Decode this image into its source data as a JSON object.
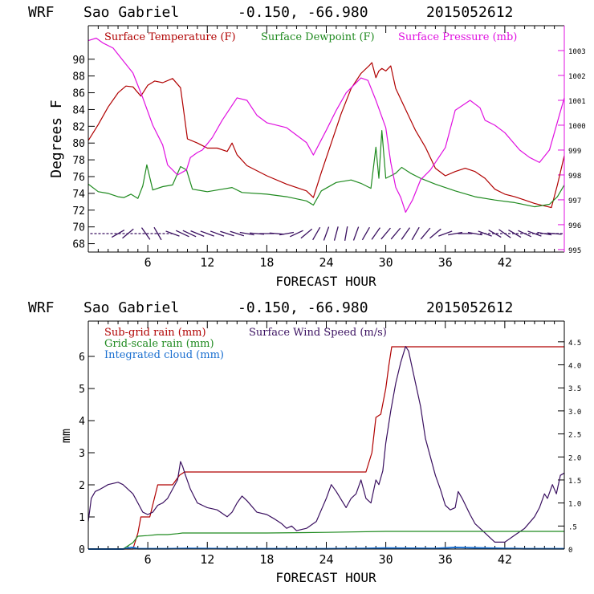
{
  "chart_data": [
    {
      "type": "line",
      "title": "WRF   Sao Gabriel   -0.150, -66.980  2015052612",
      "title_parts": {
        "model": "WRF",
        "station": "Sao Gabriel",
        "coords": "-0.150, -66.980",
        "run": "2015052612"
      },
      "xlabel": "FORECAST HOUR",
      "ylabel": "Degrees F",
      "xlim": [
        0,
        48
      ],
      "x_ticks": [
        6,
        12,
        18,
        24,
        30,
        36,
        42
      ],
      "ylim": [
        67,
        94
      ],
      "y_ticks": [
        68,
        70,
        72,
        74,
        76,
        78,
        80,
        82,
        84,
        86,
        88,
        90
      ],
      "y2lim": [
        994.9,
        1004.0
      ],
      "y2_ticks": [
        995,
        996,
        997,
        998,
        999,
        1000,
        1001,
        1002,
        1003
      ],
      "legend": [
        "Surface Temperature (F)",
        "Surface Dewpoint (F)",
        "Surface Pressure (mb)"
      ],
      "colors": {
        "temperature": "#b00000",
        "dewpoint": "#1f8a1f",
        "pressure": "#e010e0",
        "barbs": "#3a1060",
        "frame_left": "#000000",
        "frame_right": "#e010e0"
      },
      "series": [
        {
          "name": "Surface Temperature (F)",
          "axis": "left",
          "x": [
            0,
            1,
            2,
            3,
            3.8,
            4.5,
            5.3,
            6,
            6.7,
            7.5,
            8.5,
            9.3,
            9.6,
            10,
            11,
            12,
            13,
            14,
            14.5,
            15,
            16,
            18,
            20,
            22,
            22.7,
            23.5,
            24.5,
            25.5,
            26.5,
            27.5,
            28.3,
            28.6,
            29,
            29.3,
            29.6,
            30,
            30.5,
            31,
            32,
            33,
            34,
            35,
            36,
            37,
            38,
            39,
            40,
            41,
            42,
            43,
            44,
            45,
            46,
            46.7,
            47.3,
            48
          ],
          "values": [
            80.3,
            82.2,
            84.3,
            86,
            86.8,
            86.7,
            85.6,
            86.9,
            87.4,
            87.2,
            87.7,
            86.6,
            84,
            80.5,
            80,
            79.4,
            79.4,
            79,
            80,
            78.6,
            77.3,
            76.1,
            75.1,
            74.3,
            73.5,
            76.5,
            80,
            83.5,
            86.5,
            88.3,
            89.2,
            89.6,
            87.8,
            88.6,
            88.9,
            88.6,
            89.2,
            86.5,
            84,
            81.5,
            79.5,
            77,
            76.1,
            76.6,
            77,
            76.6,
            75.8,
            74.5,
            73.9,
            73.6,
            73.2,
            72.8,
            72.5,
            72.3,
            75,
            78.5
          ]
        },
        {
          "name": "Surface Dewpoint (F)",
          "axis": "left",
          "x": [
            0,
            1,
            2,
            3,
            3.6,
            4.3,
            5,
            5.5,
            5.9,
            6.5,
            7.5,
            8.5,
            9.3,
            9.9,
            10.5,
            12,
            13.5,
            14.5,
            15.5,
            18,
            20,
            22,
            22.7,
            23.5,
            25,
            26.5,
            27.5,
            28.5,
            29,
            29.3,
            29.6,
            30,
            30.5,
            31,
            31.6,
            32.5,
            33.5,
            35,
            37,
            39,
            41,
            43,
            45,
            46.5,
            47.3,
            48
          ],
          "values": [
            75.1,
            74.2,
            74,
            73.6,
            73.5,
            73.9,
            73.4,
            74.9,
            77.4,
            74.4,
            74.8,
            75,
            77.2,
            76.8,
            74.5,
            74.2,
            74.5,
            74.7,
            74.1,
            73.9,
            73.6,
            73.1,
            72.6,
            74.3,
            75.3,
            75.6,
            75.2,
            74.6,
            79.5,
            75.8,
            81.5,
            75.8,
            76.1,
            76.4,
            77.1,
            76.4,
            75.8,
            75.1,
            74.3,
            73.6,
            73.2,
            72.9,
            72.4,
            72.7,
            73.6,
            75
          ]
        },
        {
          "name": "Surface Pressure (mb)",
          "axis": "right",
          "x": [
            0,
            0.8,
            1.5,
            2.5,
            3.5,
            4.5,
            5.5,
            6.5,
            7.5,
            8,
            9,
            9.9,
            10.3,
            11,
            11.5,
            12.5,
            13.5,
            15,
            16,
            17,
            18,
            20,
            22,
            22.7,
            24,
            25,
            26,
            27.5,
            28.2,
            29,
            30,
            30.5,
            31,
            31.5,
            32,
            32.7,
            33.5,
            34.5,
            36,
            37,
            38.5,
            39.5,
            40,
            41,
            42,
            43.5,
            44.5,
            45.5,
            46.5,
            47.5,
            48
          ],
          "values": [
            1003.4,
            1003.5,
            1003.3,
            1003.1,
            1002.6,
            1002.1,
            1001.1,
            1000.0,
            999.2,
            998.4,
            998.0,
            998.2,
            998.7,
            998.9,
            999.0,
            999.5,
            1000.2,
            1001.1,
            1001.0,
            1000.4,
            1000.1,
            999.9,
            999.3,
            998.8,
            999.8,
            1000.6,
            1001.3,
            1001.9,
            1001.8,
            1001.0,
            999.9,
            998.5,
            997.5,
            997.1,
            996.5,
            997.0,
            997.8,
            998.2,
            999.1,
            1000.6,
            1001.0,
            1000.7,
            1000.2,
            1000.0,
            999.7,
            999.0,
            998.7,
            998.5,
            999.0,
            1000.4,
            1001.1
          ]
        }
      ],
      "wind_barbs": {
        "description": "Row of wind barbs plotted near 69 F along the bottom of the temperature panel"
      }
    },
    {
      "type": "line",
      "title": "WRF   Sao Gabriel   -0.150, -66.980  2015052612",
      "title_parts": {
        "model": "WRF",
        "station": "Sao Gabriel",
        "coords": "-0.150, -66.980",
        "run": "2015052612"
      },
      "xlabel": "FORECAST HOUR",
      "ylabel": "mm",
      "xlim": [
        0,
        48
      ],
      "x_ticks": [
        6,
        12,
        18,
        24,
        30,
        36,
        42
      ],
      "ylim": [
        0,
        7.1
      ],
      "y_ticks": [
        0,
        1,
        2,
        3,
        4,
        5,
        6
      ],
      "y2lim": [
        0,
        4.95
      ],
      "y2_ticks": [
        0,
        0.5,
        1.0,
        1.5,
        2.0,
        2.5,
        3.0,
        3.5,
        4.0,
        4.5
      ],
      "y2_tick_labels": [
        "0",
        ".5",
        "1.0",
        "1.5",
        "2.0",
        "2.5",
        "3.0",
        "3.5",
        "4.0",
        "4.5"
      ],
      "legend": [
        "Sub-grid rain (mm)",
        "Surface Wind Speed (m/s)",
        "Grid-scale rain (mm)",
        "Integrated cloud (mm)"
      ],
      "colors": {
        "subgrid": "#b00000",
        "wind": "#3a1060",
        "gridscale": "#1f8a1f",
        "cloud": "#1a6fd0",
        "frame_left": "#000000"
      },
      "series": [
        {
          "name": "Sub-grid rain (mm)",
          "axis": "left",
          "x": [
            0,
            4.5,
            5,
            5.3,
            6.2,
            7,
            8.5,
            9.2,
            9.7,
            10,
            12,
            18,
            24,
            28,
            28.6,
            29,
            29.5,
            30,
            30.3,
            30.6,
            36,
            42,
            48
          ],
          "values": [
            0,
            0,
            0.5,
            1.0,
            1.0,
            2.0,
            2.0,
            2.3,
            2.4,
            2.4,
            2.4,
            2.4,
            2.4,
            2.4,
            3.0,
            4.1,
            4.2,
            5.0,
            5.7,
            6.3,
            6.3,
            6.3,
            6.3
          ]
        },
        {
          "name": "Surface Wind Speed (m/s)",
          "axis": "right",
          "x": [
            0,
            0.3,
            0.7,
            1.2,
            2,
            3,
            3.5,
            4,
            4.5,
            5,
            5.5,
            6,
            6.5,
            7,
            7.5,
            8,
            8.5,
            9,
            9.3,
            9.5,
            9.8,
            10.3,
            11,
            12,
            13,
            14,
            14.5,
            15,
            15.5,
            16,
            17,
            18,
            18.8,
            19.5,
            20,
            20.5,
            21,
            22,
            23,
            23.5,
            24,
            24.5,
            25,
            26,
            26.5,
            27,
            27.5,
            28,
            28.5,
            28.8,
            29,
            29.3,
            29.7,
            30,
            30.5,
            31,
            31.5,
            32,
            32.3,
            32.8,
            33.5,
            34,
            35,
            35.5,
            36,
            36.5,
            37,
            37.3,
            37.7,
            38.5,
            39,
            39.5,
            40,
            40.5,
            41,
            42,
            43,
            44,
            45,
            45.5,
            46,
            46.3,
            46.8,
            47.2,
            47.6,
            48
          ],
          "values": [
            0.6,
            1.1,
            1.25,
            1.3,
            1.4,
            1.45,
            1.4,
            1.3,
            1.2,
            1.0,
            0.8,
            0.75,
            0.8,
            0.95,
            1.0,
            1.1,
            1.3,
            1.5,
            1.9,
            1.8,
            1.6,
            1.3,
            1.0,
            0.9,
            0.85,
            0.7,
            0.8,
            1.0,
            1.15,
            1.05,
            0.8,
            0.75,
            0.65,
            0.55,
            0.45,
            0.5,
            0.4,
            0.45,
            0.6,
            0.85,
            1.1,
            1.4,
            1.25,
            0.9,
            1.1,
            1.2,
            1.5,
            1.1,
            1.0,
            1.3,
            1.5,
            1.4,
            1.7,
            2.3,
            3.0,
            3.6,
            4.05,
            4.4,
            4.3,
            3.8,
            3.1,
            2.4,
            1.6,
            1.3,
            0.95,
            0.85,
            0.9,
            1.25,
            1.1,
            0.75,
            0.55,
            0.45,
            0.35,
            0.25,
            0.15,
            0.15,
            0.3,
            0.45,
            0.7,
            0.9,
            1.2,
            1.1,
            1.4,
            1.2,
            1.6,
            1.65
          ]
        },
        {
          "name": "Grid-scale rain (mm)",
          "axis": "left",
          "x": [
            0,
            3.5,
            4.5,
            5,
            6,
            7,
            8,
            9,
            9.5,
            10,
            12,
            18,
            24,
            30,
            36,
            42,
            48
          ],
          "values": [
            0,
            0,
            0.2,
            0.4,
            0.42,
            0.45,
            0.45,
            0.48,
            0.5,
            0.5,
            0.5,
            0.5,
            0.52,
            0.55,
            0.55,
            0.55,
            0.55
          ]
        },
        {
          "name": "Integrated cloud (mm)",
          "axis": "left",
          "x": [
            0,
            3.5,
            4,
            4.5,
            5,
            8,
            10,
            14,
            18,
            24,
            28,
            30,
            35,
            37,
            40,
            44,
            48
          ],
          "values": [
            0,
            0,
            0.03,
            0.05,
            0.01,
            0.01,
            0.02,
            0.01,
            0.01,
            0.01,
            0.02,
            0.03,
            0.02,
            0.05,
            0.03,
            0.01,
            0.01
          ]
        }
      ]
    }
  ]
}
